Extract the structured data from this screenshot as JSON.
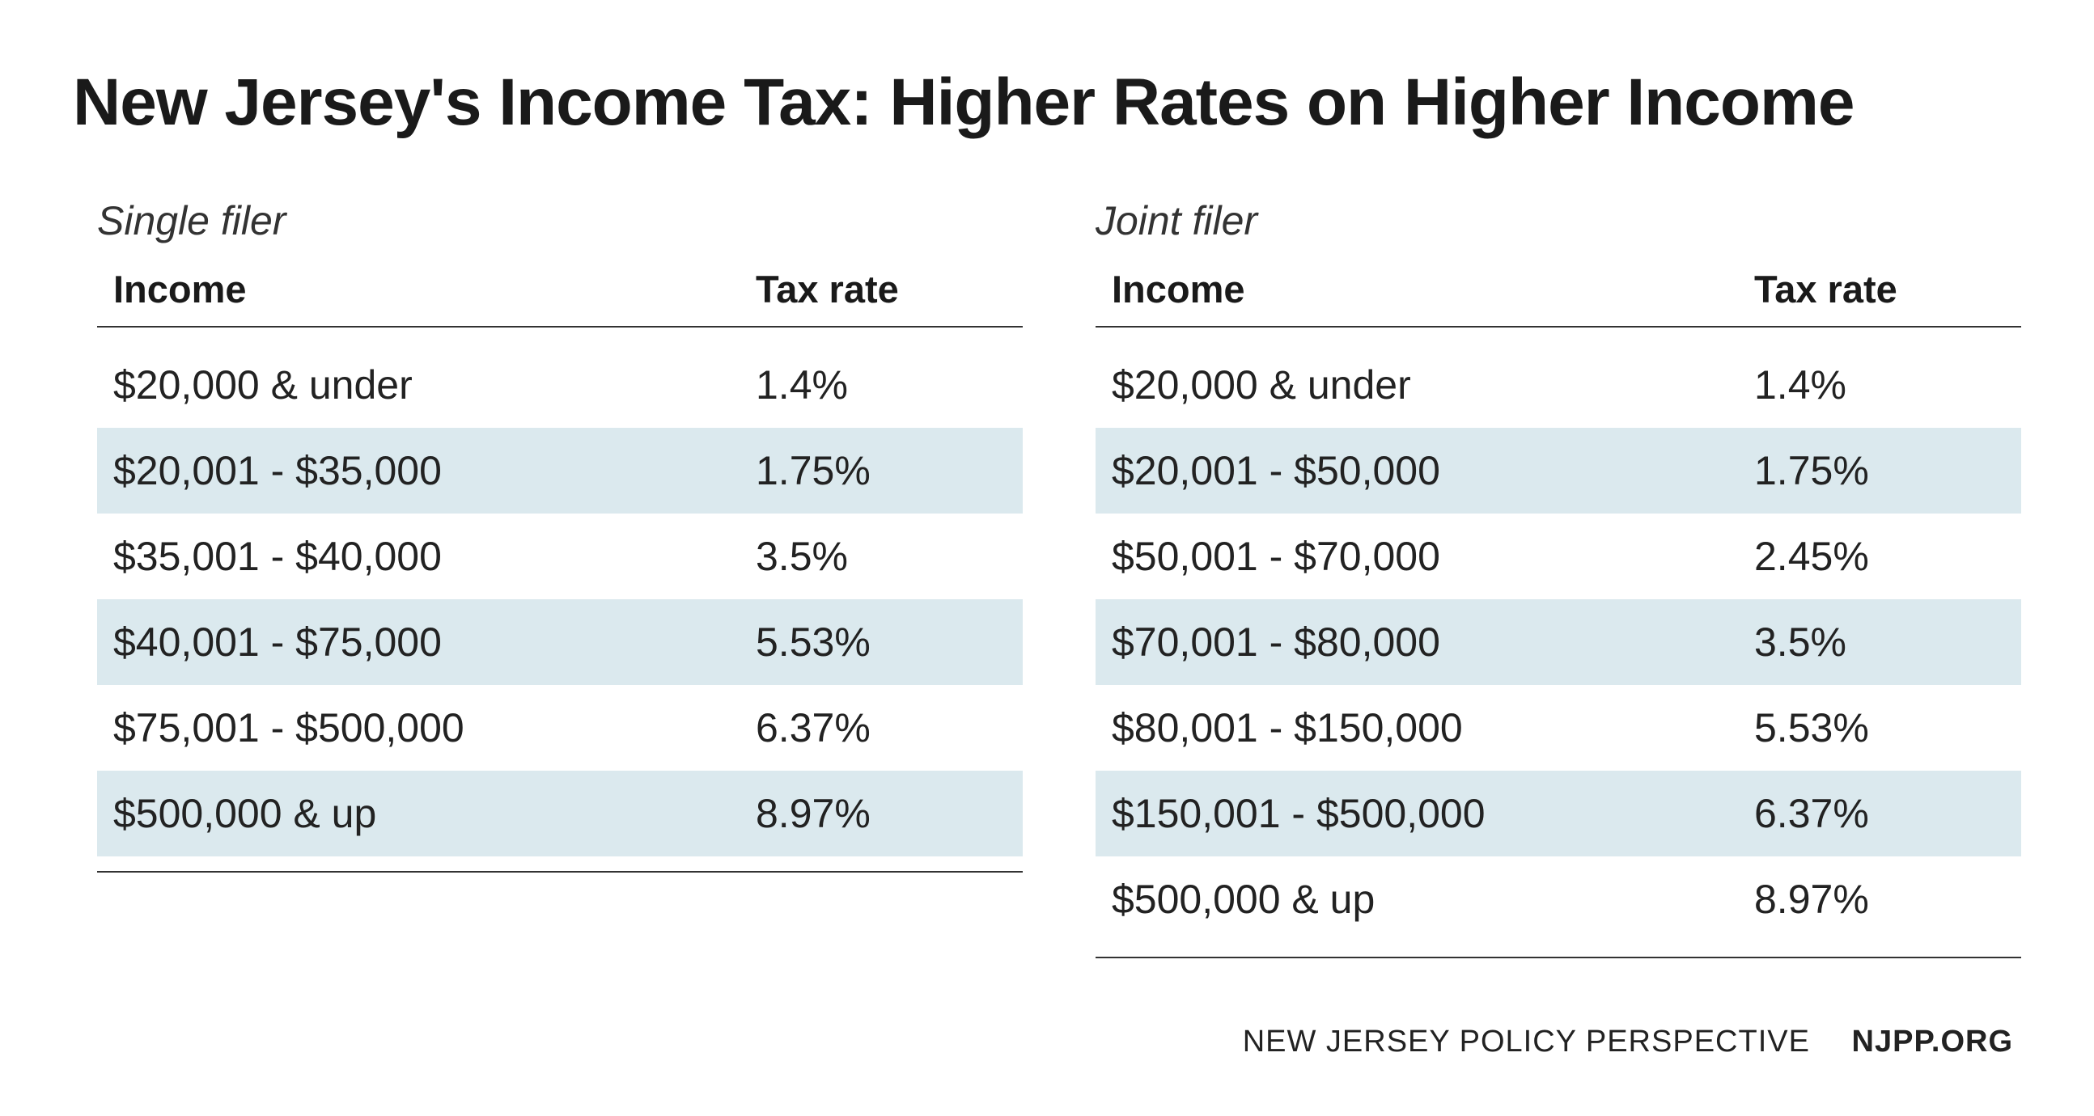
{
  "title": "New Jersey's Income Tax: Higher Rates on Higher Income",
  "columns": {
    "income": "Income",
    "rate": "Tax rate"
  },
  "colors": {
    "background": "#ffffff",
    "text": "#1a1a1a",
    "stripe": "#dbe9ee",
    "rule": "#333333"
  },
  "typography": {
    "title_fontsize": 82,
    "filer_label_fontsize": 50,
    "header_fontsize": 47,
    "row_fontsize": 50,
    "footer_fontsize": 38,
    "font_family": "Helvetica Neue"
  },
  "tables": [
    {
      "filer_label": "Single filer",
      "rows": [
        {
          "income": "$20,000 & under",
          "rate": "1.4%"
        },
        {
          "income": "$20,001 - $35,000",
          "rate": "1.75%"
        },
        {
          "income": "$35,001 - $40,000",
          "rate": "3.5%"
        },
        {
          "income": "$40,001 - $75,000",
          "rate": "5.53%"
        },
        {
          "income": "$75,001 - $500,000",
          "rate": "6.37%"
        },
        {
          "income": "$500,000 & up",
          "rate": "8.97%"
        }
      ]
    },
    {
      "filer_label": "Joint filer",
      "rows": [
        {
          "income": "$20,000 & under",
          "rate": "1.4%"
        },
        {
          "income": "$20,001 - $50,000",
          "rate": "1.75%"
        },
        {
          "income": "$50,001 - $70,000",
          "rate": "2.45%"
        },
        {
          "income": "$70,001 - $80,000",
          "rate": "3.5%"
        },
        {
          "income": "$80,001 - $150,000",
          "rate": "5.53%"
        },
        {
          "income": "$150,001 - $500,000",
          "rate": "6.37%"
        },
        {
          "income": "$500,000 & up",
          "rate": "8.97%"
        }
      ]
    }
  ],
  "footer": {
    "org": "NEW JERSEY POLICY PERSPECTIVE",
    "site": "NJPP.ORG"
  }
}
